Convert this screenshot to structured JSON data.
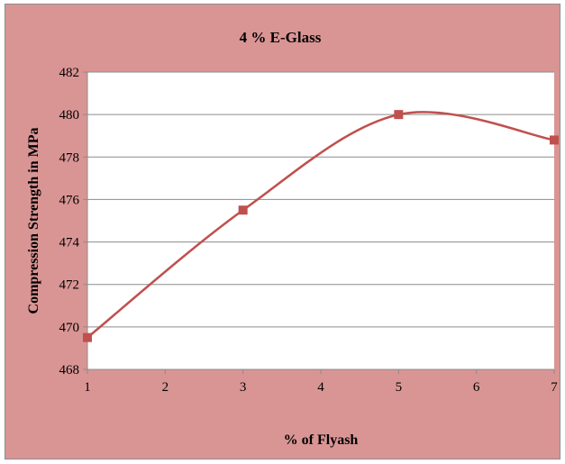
{
  "colors": {
    "chart_background": "#D99594",
    "plot_background": "#FFFFFF",
    "line": "#C0504D",
    "gridline": "#8C8C8C"
  },
  "chart_data": {
    "type": "line",
    "title": "4 % E-Glass",
    "xlabel": "% of Flyash",
    "ylabel": "Compression Strength in MPa",
    "x_ticks": [
      "1",
      "2",
      "3",
      "4",
      "5",
      "6",
      "7"
    ],
    "y_ticks": [
      "468",
      "470",
      "472",
      "474",
      "476",
      "478",
      "480",
      "482"
    ],
    "xlim": [
      1,
      7
    ],
    "ylim": [
      468,
      482
    ],
    "grid": "horizontal",
    "smoothed": true,
    "marker": "square",
    "series": [
      {
        "x": [
          1,
          3,
          5,
          7
        ],
        "y": [
          469.5,
          475.5,
          480.0,
          478.8
        ]
      }
    ]
  }
}
